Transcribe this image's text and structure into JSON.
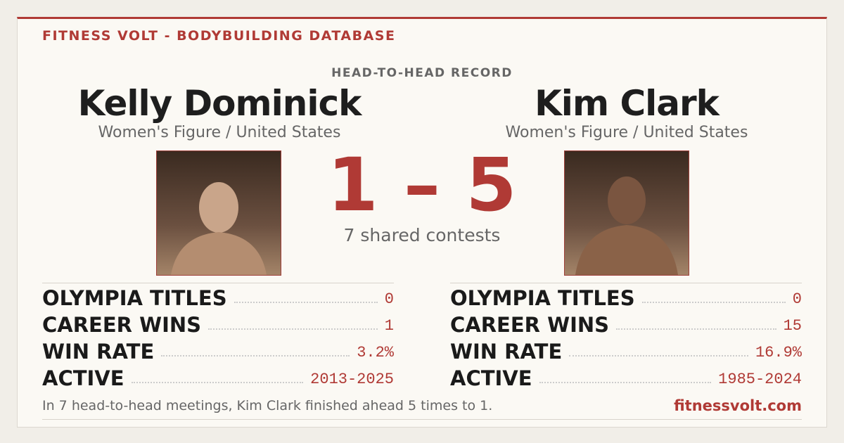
{
  "header": {
    "brand": "FITNESS VOLT - BODYBUILDING DATABASE"
  },
  "record": {
    "label": "HEAD-TO-HEAD RECORD",
    "score": "1 – 5",
    "shared": "7 shared contests"
  },
  "athletes": [
    {
      "name": "Kelly Dominick",
      "division": "Women's Figure / United States",
      "stats": [
        {
          "label": "OLYMPIA TITLES",
          "value": "0"
        },
        {
          "label": "CAREER WINS",
          "value": "1"
        },
        {
          "label": "WIN RATE",
          "value": "3.2%"
        },
        {
          "label": "ACTIVE",
          "value": "2013-2025"
        }
      ]
    },
    {
      "name": "Kim Clark",
      "division": "Women's Figure / United States",
      "stats": [
        {
          "label": "OLYMPIA TITLES",
          "value": "0"
        },
        {
          "label": "CAREER WINS",
          "value": "15"
        },
        {
          "label": "WIN RATE",
          "value": "16.9%"
        },
        {
          "label": "ACTIVE",
          "value": "1985-2024"
        }
      ]
    }
  ],
  "footer": {
    "summary": "In 7 head-to-head meetings, Kim Clark finished ahead 5 times to 1.",
    "site": "fitnessvolt.com"
  }
}
